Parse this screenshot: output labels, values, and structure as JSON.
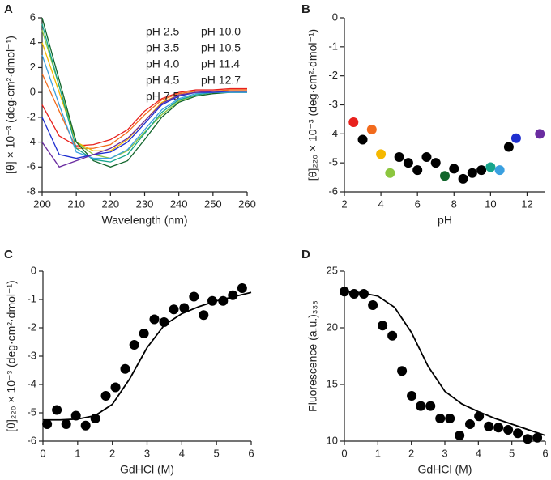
{
  "chart_data": [
    {
      "panel": "A",
      "type": "line",
      "x_label": "Wavelength (nm)",
      "y_label": "[θ] × 10⁻³ (deg·cm²·dmol⁻¹)",
      "xlim": [
        200,
        260
      ],
      "xticks": [
        200,
        210,
        220,
        230,
        240,
        250,
        260
      ],
      "ylim": [
        -8,
        6
      ],
      "yticks": [
        -8,
        -6,
        -4,
        -2,
        0,
        2,
        4,
        6
      ],
      "series": [
        {
          "name": "pH 2.5",
          "color": "#e8211d",
          "x": [
            200,
            205,
            210,
            215,
            220,
            225,
            230,
            235,
            240,
            245,
            250,
            255,
            260
          ],
          "values": [
            -1,
            -3.5,
            -4.3,
            -4.2,
            -3.8,
            -3.0,
            -1.5,
            -0.5,
            0,
            0.2,
            0.2,
            0.3,
            0.3
          ]
        },
        {
          "name": "pH 3.5",
          "color": "#f26b1d",
          "x": [
            200,
            205,
            210,
            215,
            220,
            225,
            230,
            235,
            240,
            245,
            250,
            255,
            260
          ],
          "values": [
            1.5,
            -1.5,
            -4.5,
            -4.5,
            -4.2,
            -3.2,
            -1.8,
            -0.6,
            -0.1,
            0.1,
            0.1,
            0.2,
            0.2
          ]
        },
        {
          "name": "pH 4.0",
          "color": "#f5b800",
          "x": [
            200,
            205,
            210,
            215,
            220,
            225,
            230,
            235,
            240,
            245,
            250,
            255,
            260
          ],
          "values": [
            4,
            0,
            -4,
            -4.7,
            -4.7,
            -3.8,
            -2.3,
            -0.8,
            -0.2,
            0,
            0,
            0.1,
            0.1
          ]
        },
        {
          "name": "pH 4.5",
          "color": "#8cc63f",
          "x": [
            200,
            205,
            210,
            215,
            220,
            225,
            230,
            235,
            240,
            245,
            250,
            255,
            260
          ],
          "values": [
            5,
            0.5,
            -4,
            -5,
            -5.3,
            -4.7,
            -3.2,
            -1.8,
            -0.7,
            -0.2,
            0,
            0,
            0.1
          ]
        },
        {
          "name": "pH 7.5",
          "color": "#11652b",
          "x": [
            200,
            205,
            210,
            215,
            220,
            225,
            230,
            235,
            240,
            245,
            250,
            255,
            260
          ],
          "values": [
            6,
            1,
            -4,
            -5.5,
            -6,
            -5.5,
            -3.8,
            -2,
            -0.8,
            -0.3,
            -0.1,
            0,
            0
          ]
        },
        {
          "name": "pH 10.0",
          "color": "#17a58c",
          "x": [
            200,
            205,
            210,
            215,
            220,
            225,
            230,
            235,
            240,
            245,
            250,
            255,
            260
          ],
          "values": [
            5.5,
            0.5,
            -4.5,
            -5.4,
            -5.6,
            -5,
            -3.3,
            -1.6,
            -0.6,
            -0.2,
            0,
            0,
            0
          ]
        },
        {
          "name": "pH 10.5",
          "color": "#3aa0e0",
          "x": [
            200,
            205,
            210,
            215,
            220,
            225,
            230,
            235,
            240,
            245,
            250,
            255,
            260
          ],
          "values": [
            3,
            -1,
            -4.8,
            -5.3,
            -5.3,
            -4.6,
            -3,
            -1.4,
            -0.5,
            -0.1,
            0,
            0,
            0
          ]
        },
        {
          "name": "pH 11.4",
          "color": "#1f2fd0",
          "x": [
            200,
            205,
            210,
            215,
            220,
            225,
            230,
            235,
            240,
            245,
            250,
            255,
            260
          ],
          "values": [
            -2,
            -5,
            -5.3,
            -5,
            -4.8,
            -4,
            -2.5,
            -1,
            -0.3,
            0,
            0,
            0.1,
            0.1
          ]
        },
        {
          "name": "pH 12.7",
          "color": "#6a2ca0",
          "x": [
            200,
            205,
            210,
            215,
            220,
            225,
            230,
            235,
            240,
            245,
            250,
            255,
            260
          ],
          "values": [
            -4,
            -6,
            -5.5,
            -5,
            -4.5,
            -3.7,
            -2.3,
            -0.9,
            -0.2,
            0,
            0.1,
            0.1,
            0.1
          ]
        }
      ]
    },
    {
      "panel": "B",
      "type": "scatter",
      "x_label": "pH",
      "y_label": "[θ]₂₂₀ × 10⁻³ (deg·cm²·dmol⁻¹)",
      "xlim": [
        2,
        13
      ],
      "xticks": [
        2,
        4,
        6,
        8,
        10,
        12
      ],
      "ylim": [
        -6,
        0
      ],
      "yticks": [
        -6,
        -5,
        -4,
        -3,
        -2,
        -1,
        0
      ],
      "series": [
        {
          "type": "scatter",
          "x": [
            2.5,
            3.0,
            3.5,
            4.0,
            4.5,
            5.0,
            5.5,
            6.0,
            6.5,
            7.0,
            7.5,
            8.0,
            8.5,
            9.0,
            9.5,
            10.0,
            10.5,
            11.0,
            11.4,
            12.7
          ],
          "values": [
            -3.6,
            -4.2,
            -3.85,
            -4.7,
            -5.35,
            -4.8,
            -5.0,
            -5.25,
            -4.8,
            -5.0,
            -5.45,
            -5.2,
            -5.55,
            -5.35,
            -5.25,
            -5.15,
            -5.25,
            -4.45,
            -4.15,
            -4.0
          ],
          "colors": [
            "#e8211d",
            "#000000",
            "#f26b1d",
            "#f5b800",
            "#8cc63f",
            "#000000",
            "#000000",
            "#000000",
            "#000000",
            "#000000",
            "#11652b",
            "#000000",
            "#000000",
            "#000000",
            "#000000",
            "#17a58c",
            "#3aa0e0",
            "#000000",
            "#1f2fd0",
            "#6a2ca0"
          ]
        }
      ]
    },
    {
      "panel": "C",
      "type": "scatter",
      "x_label": "GdHCl (M)",
      "y_label": "[θ]₂₂₀ × 10⁻³ (deg·cm²·dmol⁻¹)",
      "xlim": [
        0,
        6
      ],
      "xticks": [
        0,
        1,
        2,
        3,
        4,
        5,
        6
      ],
      "ylim": [
        -6,
        0
      ],
      "yticks": [
        -6,
        -5,
        -4,
        -3,
        -2,
        -1,
        0
      ],
      "series": [
        {
          "type": "scatter",
          "color": "#000000",
          "x": [
            0.12,
            0.4,
            0.67,
            0.95,
            1.23,
            1.51,
            1.81,
            2.09,
            2.37,
            2.63,
            2.91,
            3.21,
            3.49,
            3.77,
            4.07,
            4.35,
            4.63,
            4.88,
            5.19,
            5.47,
            5.74
          ],
          "values": [
            -5.4,
            -4.9,
            -5.4,
            -5.1,
            -5.45,
            -5.2,
            -4.4,
            -4.1,
            -3.45,
            -2.6,
            -2.2,
            -1.7,
            -1.8,
            -1.35,
            -1.3,
            -0.9,
            -1.55,
            -1.05,
            -1.05,
            -0.85,
            -0.6
          ]
        },
        {
          "type": "line",
          "color": "#000000",
          "x": [
            0,
            0.5,
            1,
            1.5,
            2,
            2.5,
            3,
            3.5,
            4,
            4.5,
            5,
            5.5,
            6
          ],
          "values": [
            -5.25,
            -5.25,
            -5.22,
            -5.1,
            -4.7,
            -3.8,
            -2.7,
            -1.9,
            -1.5,
            -1.25,
            -1.05,
            -0.9,
            -0.75
          ]
        }
      ]
    },
    {
      "panel": "D",
      "type": "scatter",
      "x_label": "GdHCl (M)",
      "y_label": "Fluorescence (a.u.)₃₃₅",
      "xlim": [
        0,
        6
      ],
      "xticks": [
        0,
        1,
        2,
        3,
        4,
        5,
        6
      ],
      "ylim": [
        10,
        25
      ],
      "yticks": [
        10,
        15,
        20,
        25
      ],
      "series": [
        {
          "type": "scatter",
          "color": "#000000",
          "x": [
            0,
            0.29,
            0.58,
            0.85,
            1.14,
            1.43,
            1.72,
            2.01,
            2.28,
            2.57,
            2.86,
            3.15,
            3.44,
            3.75,
            4.02,
            4.31,
            4.6,
            4.89,
            5.18,
            5.47,
            5.76
          ],
          "values": [
            23.2,
            23.0,
            23.0,
            22.0,
            20.2,
            19.3,
            16.2,
            14.0,
            13.1,
            13.1,
            12.0,
            12.0,
            10.5,
            11.5,
            12.2,
            11.3,
            11.2,
            11.0,
            10.7,
            10.2,
            10.3
          ]
        },
        {
          "type": "line",
          "color": "#000000",
          "x": [
            0,
            0.5,
            1,
            1.5,
            2,
            2.5,
            3,
            3.5,
            4,
            4.5,
            5,
            5.5,
            6
          ],
          "values": [
            23.2,
            23.1,
            22.8,
            21.8,
            19.6,
            16.6,
            14.4,
            13.3,
            12.6,
            12.0,
            11.5,
            11.0,
            10.5
          ]
        }
      ]
    }
  ]
}
